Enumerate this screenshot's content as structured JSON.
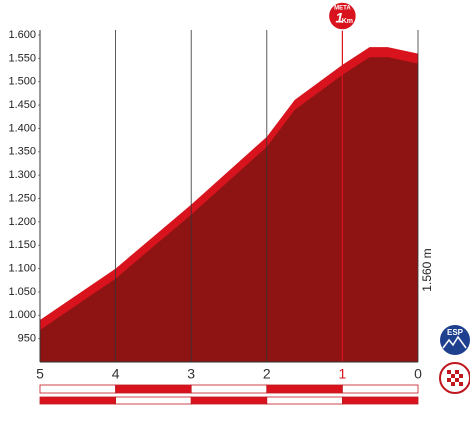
{
  "chart_data": {
    "type": "area",
    "x": [
      5,
      4,
      3,
      2,
      1.63,
      1,
      0.64,
      0.4,
      0
    ],
    "values": [
      990,
      1100,
      1237,
      1382,
      1461,
      1536,
      1574,
      1574,
      1560
    ],
    "xlim": [
      5,
      0
    ],
    "xticks": [
      5,
      4,
      3,
      2,
      1,
      0
    ],
    "ylim": [
      900,
      1600
    ],
    "yticks": [
      {
        "value": 1600,
        "label": "1.600"
      },
      {
        "value": 1550,
        "label": "1.550"
      },
      {
        "value": 1500,
        "label": "1.500"
      },
      {
        "value": 1450,
        "label": "1.450"
      },
      {
        "value": 1400,
        "label": "1.400"
      },
      {
        "value": 1350,
        "label": "1.350"
      },
      {
        "value": 1300,
        "label": "1.300"
      },
      {
        "value": 1250,
        "label": "1.250"
      },
      {
        "value": 1200,
        "label": "1.200"
      },
      {
        "value": 1150,
        "label": "1.150"
      },
      {
        "value": 1100,
        "label": "1.100"
      },
      {
        "value": 1050,
        "label": "1.050"
      },
      {
        "value": 1000,
        "label": "1.000"
      },
      950
    ],
    "color": "#d8131d",
    "fill_color": "#8e1414",
    "highlight_tick": 1,
    "highlight_color": "#d8131d",
    "finish_marker": {
      "label": "META",
      "number": "1",
      "unit": "Km"
    },
    "elevation_label": "1.560 m",
    "badge_label": "ESP"
  }
}
